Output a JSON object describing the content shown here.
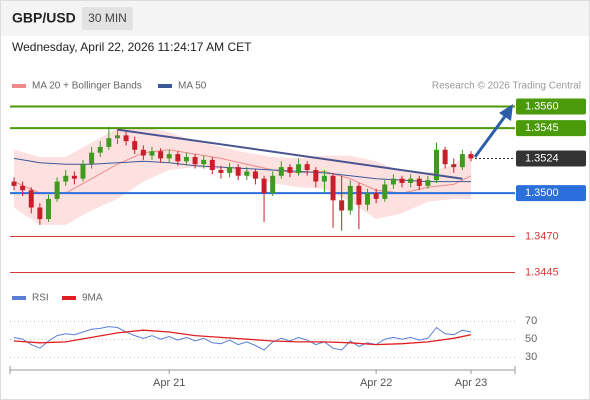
{
  "header": {
    "symbol": "GBP/USD",
    "timeframe": "30 MIN",
    "timestamp": "Wednesday, April 22, 2026 11:24:17 AM CET",
    "source": "Research © 2026 Trading Central"
  },
  "chart_data": [
    {
      "type": "candlestick",
      "categories": [
        null,
        null,
        null,
        null,
        null,
        null,
        null,
        null,
        null,
        null,
        null,
        null,
        null,
        null,
        null,
        null,
        null,
        null,
        "Apr 21",
        null,
        null,
        null,
        null,
        null,
        null,
        null,
        null,
        null,
        null,
        null,
        null,
        null,
        null,
        null,
        null,
        null,
        null,
        null,
        null,
        null,
        null,
        null,
        "Apr 22",
        null,
        null,
        null,
        null,
        null,
        null,
        null,
        null,
        null,
        null,
        "Apr 23"
      ],
      "open": [
        1.3508,
        1.3505,
        1.3502,
        1.349,
        1.3482,
        1.3496,
        1.3508,
        1.3512,
        1.351,
        1.352,
        1.3528,
        1.3532,
        1.3538,
        1.354,
        1.3536,
        1.353,
        1.3526,
        1.3529,
        1.3524,
        1.3527,
        1.3522,
        1.3525,
        1.352,
        1.3523,
        1.3516,
        1.3514,
        1.3518,
        1.3512,
        1.3515,
        1.351,
        1.35,
        1.3512,
        1.3518,
        1.3514,
        1.352,
        1.3516,
        1.3508,
        1.3512,
        1.3495,
        1.3488,
        1.3505,
        1.3492,
        1.35,
        1.3496,
        1.3506,
        1.351,
        1.3507,
        1.351,
        1.3505,
        1.3509,
        1.353,
        1.352,
        1.3518,
        1.3527
      ],
      "high": [
        1.3511,
        1.3508,
        1.3504,
        1.3493,
        1.3499,
        1.3511,
        1.3516,
        1.3515,
        1.3523,
        1.3532,
        1.3536,
        1.3546,
        1.3544,
        1.3543,
        1.3539,
        1.3533,
        1.3532,
        1.3531,
        1.353,
        1.3529,
        1.3528,
        1.3527,
        1.3526,
        1.3525,
        1.3519,
        1.3521,
        1.352,
        1.3518,
        1.3517,
        1.3512,
        1.3515,
        1.3522,
        1.352,
        1.3524,
        1.3522,
        1.3518,
        1.3516,
        1.3514,
        1.3512,
        1.3509,
        1.3507,
        1.3503,
        1.3503,
        1.3509,
        1.3513,
        1.3512,
        1.3513,
        1.3512,
        1.3512,
        1.3535,
        1.3532,
        1.3524,
        1.353,
        1.3529
      ],
      "low": [
        1.3502,
        1.3498,
        1.3486,
        1.3478,
        1.348,
        1.3494,
        1.3505,
        1.3506,
        1.3508,
        1.3517,
        1.3525,
        1.353,
        1.3534,
        1.3533,
        1.3527,
        1.3523,
        1.3523,
        1.3521,
        1.3521,
        1.3519,
        1.3519,
        1.3517,
        1.3517,
        1.3513,
        1.351,
        1.3511,
        1.3509,
        1.3509,
        1.3506,
        1.348,
        1.3498,
        1.351,
        1.3511,
        1.3512,
        1.3512,
        1.3504,
        1.35,
        1.3476,
        1.3474,
        1.3485,
        1.3475,
        1.3488,
        1.3493,
        1.3494,
        1.3503,
        1.3504,
        1.3504,
        1.3502,
        1.3503,
        1.3507,
        1.3517,
        1.3514,
        1.3516,
        1.3522
      ],
      "close": [
        1.3505,
        1.3502,
        1.349,
        1.3482,
        1.3496,
        1.3508,
        1.3512,
        1.351,
        1.352,
        1.3528,
        1.3532,
        1.3538,
        1.354,
        1.3536,
        1.353,
        1.3526,
        1.3529,
        1.3524,
        1.3527,
        1.3522,
        1.3525,
        1.352,
        1.3523,
        1.3516,
        1.3514,
        1.3518,
        1.3512,
        1.3515,
        1.351,
        1.35,
        1.3512,
        1.3518,
        1.3514,
        1.352,
        1.3516,
        1.3508,
        1.3512,
        1.3495,
        1.3488,
        1.3505,
        1.3492,
        1.35,
        1.3496,
        1.3506,
        1.351,
        1.3507,
        1.351,
        1.3505,
        1.3509,
        1.353,
        1.352,
        1.3518,
        1.3527,
        1.3524
      ],
      "up_color": "#3f9a1f",
      "down_color": "#c8202a",
      "ylim": [
        1.3435,
        1.357
      ],
      "series": [
        {
          "name": "MA 20 + Bollinger Bands",
          "color": "#ef8a8a",
          "band_color": "#fde0e0",
          "x": [
            0,
            3,
            6,
            9,
            12,
            15,
            18,
            21,
            24,
            27,
            30,
            33,
            36,
            39,
            42,
            45,
            48,
            51,
            53
          ],
          "values": [
            1.3508,
            1.35,
            1.35,
            1.351,
            1.352,
            1.3528,
            1.353,
            1.3527,
            1.3524,
            1.352,
            1.3516,
            1.3514,
            1.3515,
            1.351,
            1.3502,
            1.35,
            1.3504,
            1.3506,
            1.3512
          ],
          "upper": [
            1.353,
            1.3525,
            1.3525,
            1.3535,
            1.3545,
            1.3546,
            1.3542,
            1.3536,
            1.3532,
            1.3528,
            1.3525,
            1.3524,
            1.3526,
            1.3526,
            1.3522,
            1.3515,
            1.3514,
            1.352,
            1.3528
          ],
          "lower": [
            1.349,
            1.3478,
            1.3478,
            1.3488,
            1.3496,
            1.3508,
            1.3516,
            1.3518,
            1.3516,
            1.3512,
            1.3507,
            1.3504,
            1.3503,
            1.3494,
            1.3482,
            1.3486,
            1.3494,
            1.3496,
            1.3496
          ]
        },
        {
          "name": "MA 50",
          "color": "#3b5998",
          "x": [
            0,
            3,
            6,
            9,
            12,
            15,
            18,
            21,
            24,
            27,
            30,
            33,
            36,
            39,
            42,
            45,
            48,
            51,
            53
          ],
          "values": [
            1.3524,
            1.3521,
            1.352,
            1.352,
            1.3521,
            1.3522,
            1.3521,
            1.3519,
            1.3518,
            1.3517,
            1.3516,
            1.3515,
            1.3514,
            1.3512,
            1.351,
            1.3509,
            1.3508,
            1.3508,
            1.3508
          ]
        }
      ],
      "trendline": {
        "x": [
          12,
          52
        ],
        "values": [
          1.3544,
          1.351
        ],
        "color": "#4a5590"
      },
      "levels": [
        {
          "price": {
            "value": 1.356,
            "label": "1.3560"
          },
          "color": "#4a9a0a",
          "style": "box"
        },
        {
          "price": 1.3545,
          "color": "#4a9a0a",
          "style": "box"
        },
        {
          "price": 1.3524,
          "color": "#333333",
          "style": "box",
          "dotted": true
        },
        {
          "price": {
            "value": 1.35,
            "label": "1.3500"
          },
          "color": "#2a6fdb",
          "style": "box"
        },
        {
          "price": {
            "value": 1.347,
            "label": "1.3470"
          },
          "color": "#d83a3a",
          "style": "text"
        },
        {
          "price": 1.3445,
          "color": "#d83a3a",
          "style": "text"
        }
      ]
    },
    {
      "type": "line",
      "ylim": [
        18,
        88
      ],
      "yticks": [
        70,
        50,
        30
      ],
      "series": [
        {
          "name": "RSI",
          "color": "#5b7fd6",
          "values": [
            52,
            50,
            44,
            40,
            48,
            54,
            56,
            55,
            58,
            61,
            62,
            64,
            63,
            58,
            54,
            51,
            54,
            50,
            53,
            49,
            52,
            48,
            51,
            46,
            45,
            49,
            44,
            47,
            43,
            38,
            47,
            51,
            48,
            52,
            49,
            44,
            47,
            40,
            38,
            48,
            42,
            46,
            44,
            50,
            52,
            50,
            52,
            49,
            51,
            63,
            56,
            55,
            60,
            58
          ]
        },
        {
          "name": "9MA",
          "color": "#e02020",
          "x": [
            0,
            3,
            6,
            9,
            12,
            15,
            18,
            21,
            24,
            27,
            30,
            33,
            36,
            39,
            42,
            45,
            48,
            51,
            53
          ],
          "values": [
            48,
            46,
            47,
            52,
            57,
            60,
            58,
            54,
            52,
            50,
            48,
            47,
            47,
            46,
            44,
            45,
            47,
            51,
            55
          ]
        }
      ]
    }
  ]
}
